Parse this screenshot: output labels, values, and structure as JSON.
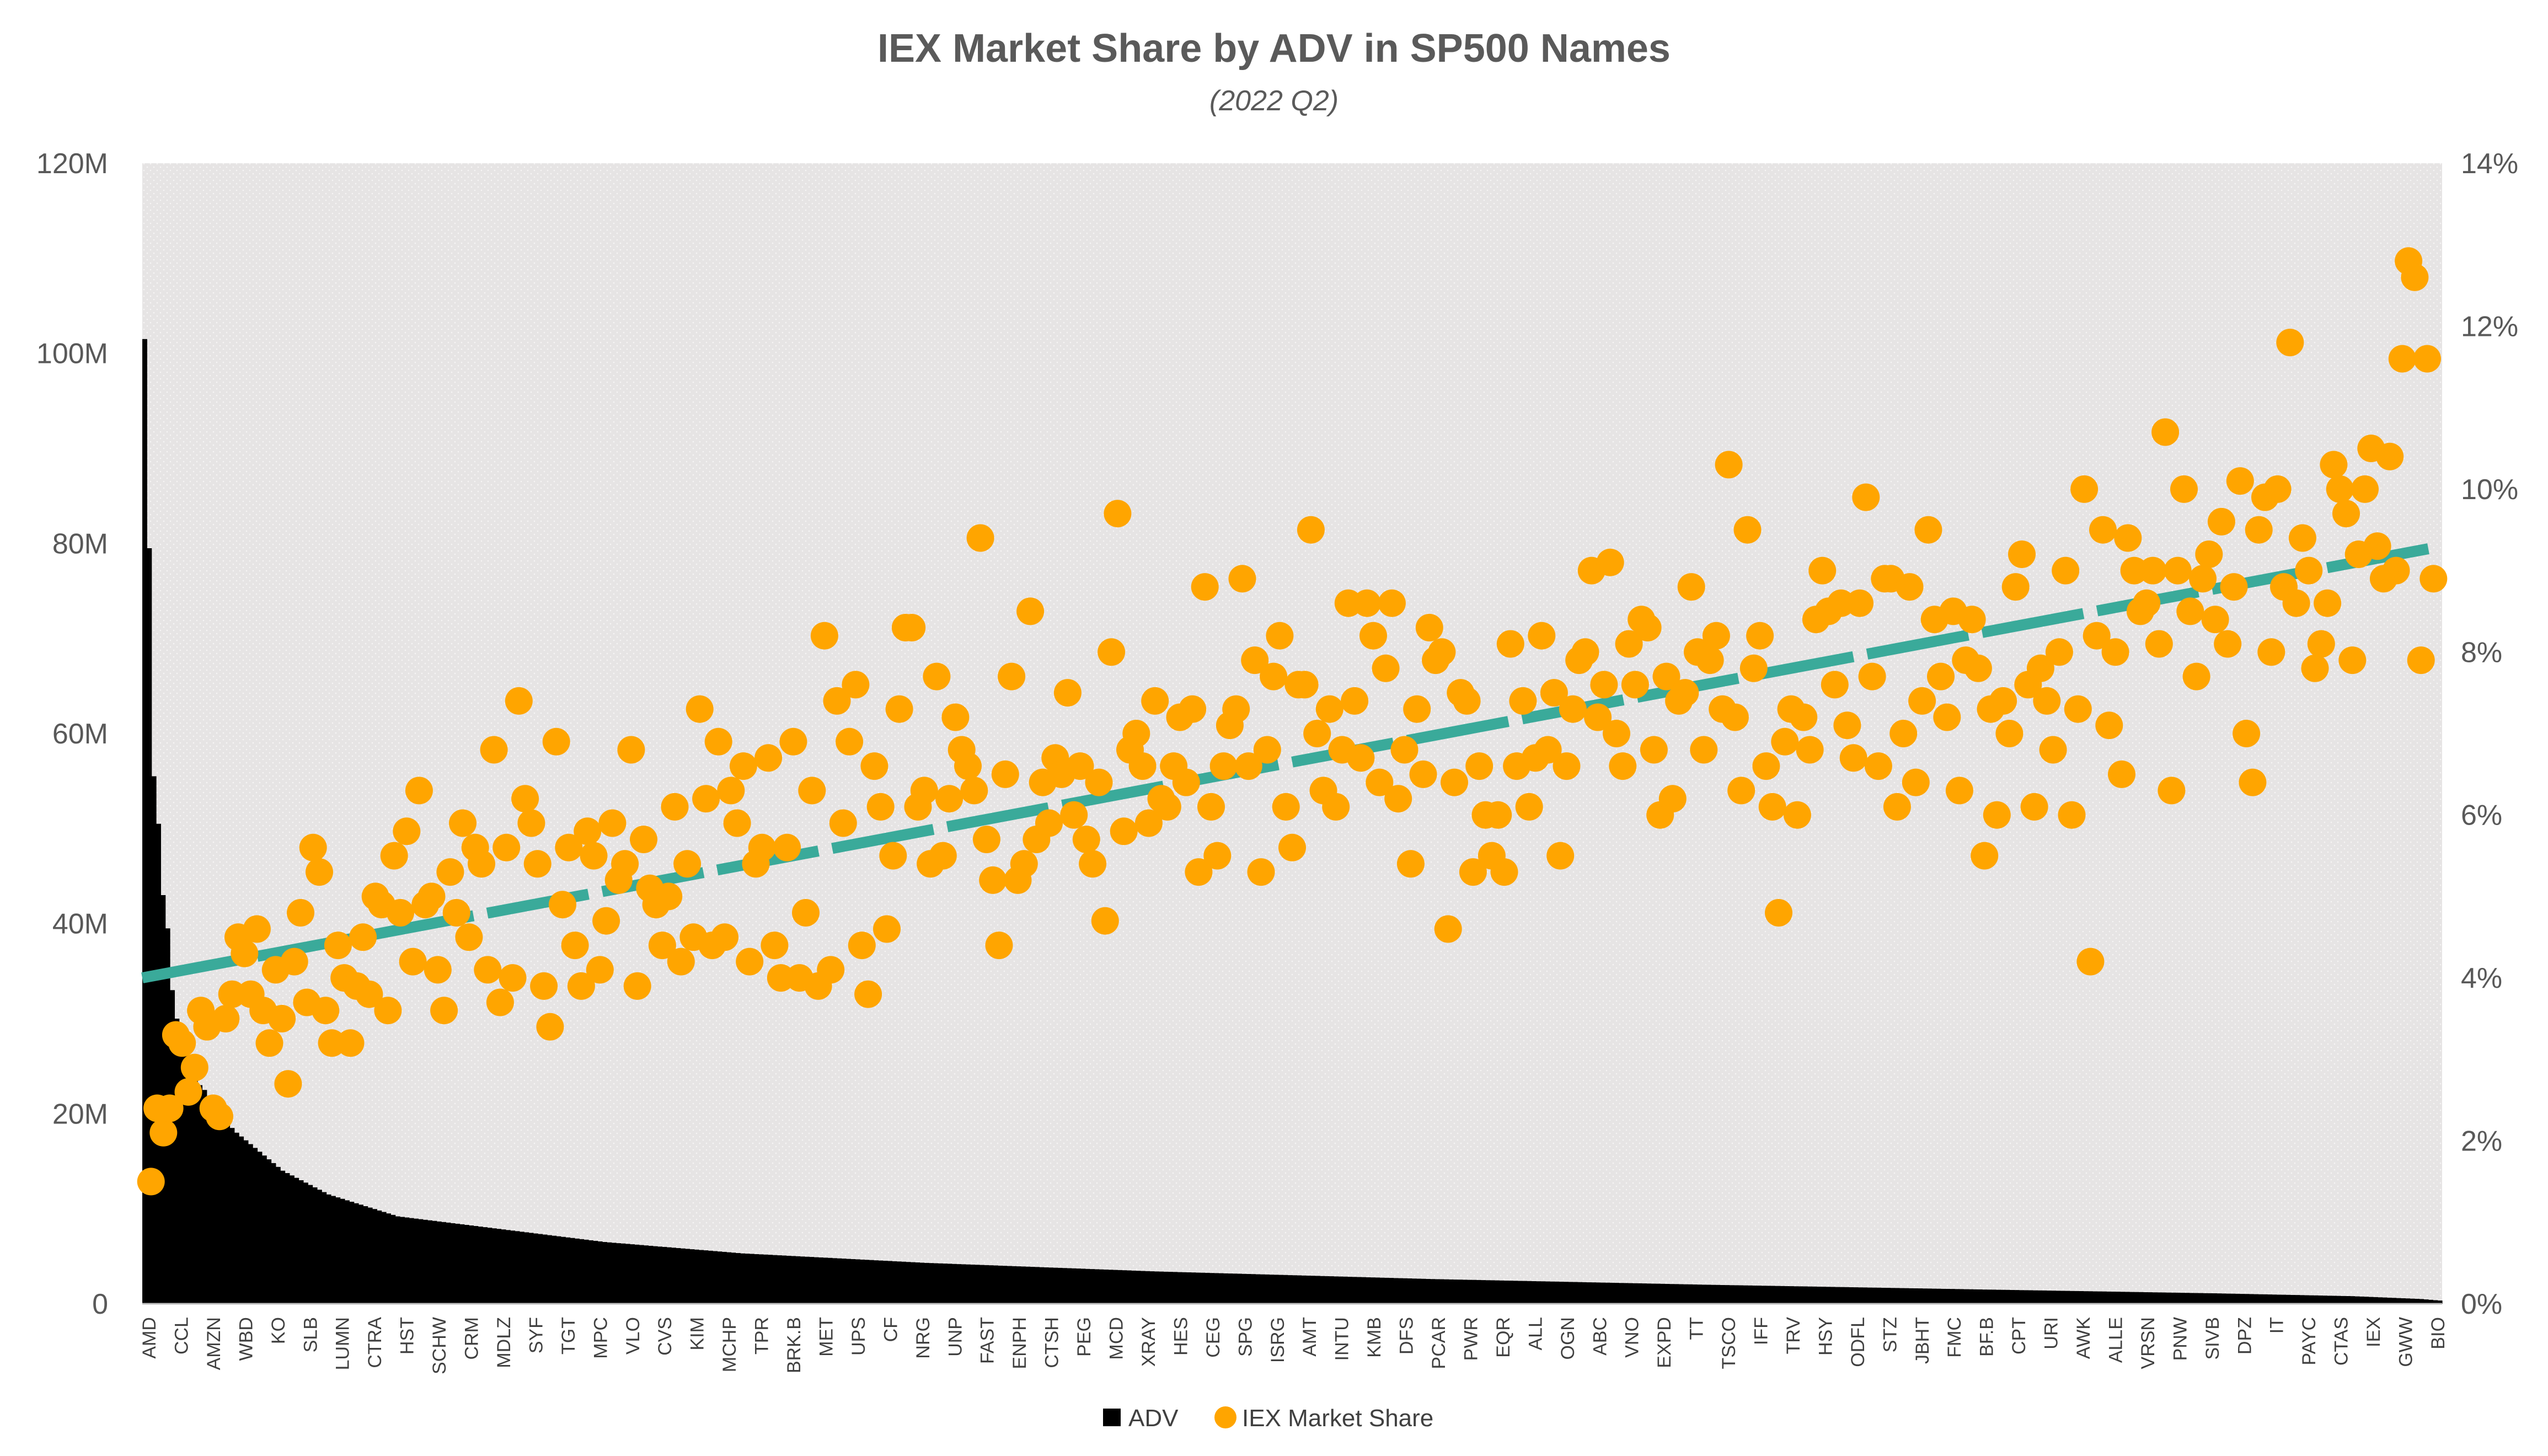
{
  "chart_data": {
    "type": "bar",
    "title": "IEX Market Share by ADV in SP500 Names",
    "subtitle": "(2022 Q2)",
    "y_left": {
      "min": 0,
      "max": 120000000,
      "ticks": [
        "0",
        "20M",
        "40M",
        "60M",
        "80M",
        "100M",
        "120M"
      ]
    },
    "y_right": {
      "min": 0,
      "max": 14,
      "ticks": [
        "0%",
        "2%",
        "4%",
        "6%",
        "8%",
        "10%",
        "12%",
        "14%"
      ]
    },
    "categories": [
      "AMD",
      "CCL",
      "AMZN",
      "WBD",
      "KO",
      "SLB",
      "LUMN",
      "CTRA",
      "HST",
      "SCHW",
      "CRM",
      "MDLZ",
      "SYF",
      "TGT",
      "MPC",
      "VLO",
      "CVS",
      "KIM",
      "MCHP",
      "TPR",
      "BRK.B",
      "MET",
      "UPS",
      "CF",
      "NRG",
      "UNP",
      "FAST",
      "ENPH",
      "CTSH",
      "PEG",
      "MCD",
      "XRAY",
      "HES",
      "CEG",
      "SPG",
      "ISRG",
      "AMT",
      "INTU",
      "KMB",
      "DFS",
      "PCAR",
      "PWR",
      "EQR",
      "ALL",
      "OGN",
      "ABC",
      "VNO",
      "EXPD",
      "TT",
      "TSCO",
      "IFF",
      "TRV",
      "HSY",
      "ODFL",
      "STZ",
      "JBHT",
      "FMC",
      "BF.B",
      "CPT",
      "URI",
      "AWK",
      "ALLE",
      "VRSN",
      "PNW",
      "SIVB",
      "DPZ",
      "IT",
      "PAYC",
      "CTAS",
      "IEX",
      "GWW",
      "BIO"
    ],
    "series": [
      {
        "name": "ADV",
        "type": "bar",
        "color": "#000000",
        "axis": "left"
      },
      {
        "name": "IEX Market Share",
        "type": "scatter",
        "color": "#FFA500",
        "axis": "right"
      }
    ],
    "adv_profile": {
      "n_bars": 500,
      "top_values_M": [
        101.5,
        79.5,
        55.5,
        50.5,
        43.0,
        39.5,
        33.0,
        30.0,
        28.0,
        26.5,
        25.0,
        24.0,
        23.0,
        22.5,
        21.5,
        20.5,
        20.0,
        19.5,
        19.0,
        18.5
      ],
      "checkpoints_M": [
        [
          20,
          18.0
        ],
        [
          25,
          16.0
        ],
        [
          30,
          14.0
        ],
        [
          40,
          11.5
        ],
        [
          55,
          9.2
        ],
        [
          75,
          8.0
        ],
        [
          100,
          6.5
        ],
        [
          130,
          5.3
        ],
        [
          170,
          4.3
        ],
        [
          220,
          3.4
        ],
        [
          280,
          2.6
        ],
        [
          340,
          2.0
        ],
        [
          400,
          1.5
        ],
        [
          450,
          1.1
        ],
        [
          480,
          0.8
        ],
        [
          495,
          0.5
        ],
        [
          500,
          0.3
        ]
      ]
    },
    "trend_segments": {
      "start_pct": 4.0,
      "end_pct": 9.3,
      "segments": 20,
      "color": "#3AAA9A"
    },
    "scatter_pct_samples": [
      1.5,
      2.4,
      2.1,
      2.4,
      3.3,
      3.2,
      2.6,
      2.9,
      3.6,
      3.4,
      2.4,
      2.3,
      3.5,
      3.8,
      4.5,
      4.3,
      3.8,
      4.6,
      3.6,
      3.2,
      4.1,
      3.5,
      2.7,
      4.2,
      4.8,
      3.7,
      5.6,
      5.3,
      3.6,
      3.2,
      4.4,
      4.0,
      3.2,
      3.9,
      4.5,
      3.8,
      5.0,
      4.9,
      3.6,
      5.5,
      4.8,
      5.8,
      4.2,
      6.3,
      4.9,
      5.0,
      4.1,
      3.6,
      5.3,
      4.8,
      5.9,
      4.5,
      5.6,
      5.4,
      4.1,
      6.8,
      3.7,
      5.6,
      4.0,
      7.4,
      6.2,
      5.9,
      5.4,
      3.9,
      3.4,
      6.9,
      4.9,
      5.6,
      4.4,
      3.9,
      5.8,
      5.5,
      4.1,
      4.7,
      5.9,
      5.2,
      5.4,
      6.8,
      3.9,
      5.7,
      5.1,
      4.9,
      4.4,
      5.0,
      6.1,
      4.2,
      5.4,
      4.5,
      7.3,
      6.2,
      4.4,
      6.9,
      4.5,
      6.3,
      5.9,
      6.6,
      4.2,
      5.4,
      5.6,
      6.7,
      4.4,
      4.0,
      5.6,
      6.9,
      4.0,
      4.8,
      6.3,
      3.9,
      8.2,
      4.1,
      7.4,
      5.9,
      6.9,
      7.6,
      4.4,
      3.8,
      6.6,
      6.1,
      4.6,
      5.5,
      7.3,
      8.3,
      8.3,
      6.1,
      6.3,
      5.4,
      7.7,
      5.5,
      6.2,
      7.2,
      6.8,
      6.6,
      6.3,
      9.4,
      5.7,
      5.2,
      4.4,
      6.5,
      7.7,
      5.2,
      5.4,
      8.5,
      5.7,
      6.4,
      5.9,
      6.7,
      6.5,
      7.5,
      6.0,
      6.6,
      5.7,
      5.4,
      6.4,
      4.7,
      8.0,
      9.7,
      5.8,
      6.8,
      7.0,
      6.6,
      5.9,
      7.4,
      6.2,
      6.1,
      6.6,
      7.2,
      6.4,
      7.3,
      5.3,
      8.8,
      6.1,
      5.5,
      6.6,
      7.1,
      7.3,
      8.9,
      6.6,
      7.9,
      5.3,
      6.8,
      7.7,
      8.2,
      6.1,
      5.6,
      7.6,
      7.6,
      9.5,
      7.0,
      6.3,
      7.3,
      6.1,
      6.8,
      8.6,
      7.4,
      6.7,
      8.6,
      8.2,
      6.4,
      7.8,
      8.6,
      6.2,
      6.8,
      5.4,
      7.3,
      6.5,
      8.3,
      7.9,
      8.0,
      4.6,
      6.4,
      7.5,
      7.4,
      5.3,
      6.6,
      6.0,
      5.5,
      6.0,
      5.3,
      8.1,
      6.6,
      7.4,
      6.1,
      6.7,
      8.2,
      6.8,
      7.5,
      5.5,
      6.6,
      7.3,
      7.9,
      8.0,
      9.0,
      7.2,
      7.6,
      9.1,
      7.0,
      6.6,
      8.1,
      7.6,
      8.4,
      8.3,
      6.8,
      6.0,
      7.7,
      6.2,
      7.4,
      7.5,
      8.8,
      8.0,
      6.8,
      7.9,
      8.2,
      7.3,
      10.3,
      7.2,
      6.3,
      9.5,
      7.8,
      8.2,
      6.6,
      6.1,
      4.8,
      6.9,
      7.3,
      6.0,
      7.2,
      6.8,
      8.4,
      9.0,
      8.5,
      7.6,
      8.6,
      7.1,
      6.7,
      8.6,
      9.9,
      7.7,
      6.6,
      8.9,
      8.9,
      6.1,
      7.0,
      8.8,
      6.4,
      7.4,
      9.5,
      8.4,
      7.7,
      7.2,
      8.5,
      6.3,
      7.9,
      8.4,
      7.8,
      5.5,
      7.3,
      6.0,
      7.4,
      7.0,
      8.8,
      9.2,
      7.6,
      6.1,
      7.8,
      7.4,
      6.8,
      8.0,
      9.0,
      6.0,
      7.3,
      10.0,
      4.2,
      8.2,
      9.5,
      7.1,
      8.0,
      6.5,
      9.4,
      9.0,
      8.5,
      8.6,
      9.0,
      8.1,
      10.7,
      6.3,
      9.0,
      10.0,
      8.5,
      7.7,
      8.9,
      9.2,
      8.4,
      9.6,
      8.1,
      8.8,
      10.1,
      7.0,
      6.4,
      9.5,
      9.9,
      8.0,
      10.0,
      8.8,
      11.8,
      8.6,
      9.4,
      9.0,
      7.8,
      8.1,
      8.6,
      10.3,
      10.0,
      9.7,
      7.9,
      9.2,
      10.0,
      10.5,
      9.3,
      8.9,
      10.4,
      9.0,
      11.6,
      12.8,
      12.6,
      7.9,
      11.6,
      8.9
    ]
  },
  "legend": [
    {
      "label": "ADV",
      "marker": "square",
      "color": "#000000"
    },
    {
      "label": "IEX Market Share",
      "marker": "circle",
      "color": "#FFA500"
    }
  ]
}
